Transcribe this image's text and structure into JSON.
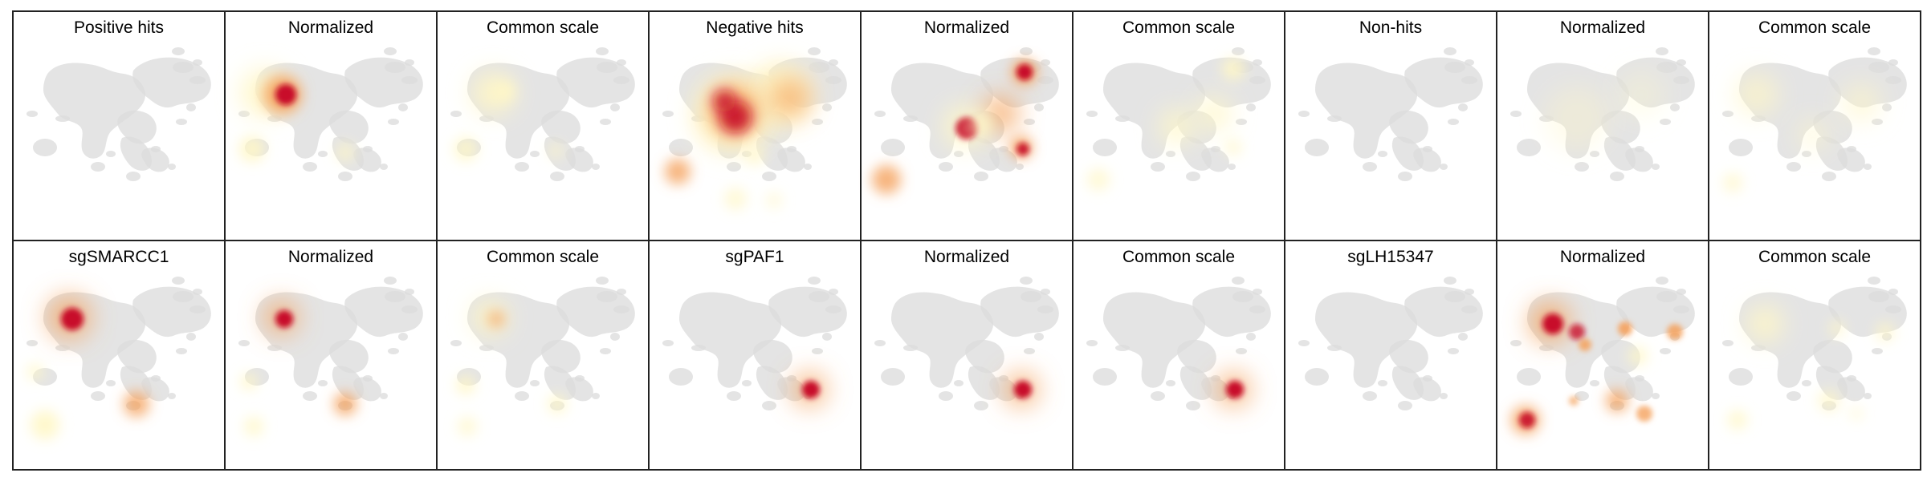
{
  "panels": [
    {
      "title": "Positive hits",
      "map": "blank"
    },
    {
      "title": "Normalized",
      "map": "positive-normalized"
    },
    {
      "title": "Common scale",
      "map": "positive-common"
    },
    {
      "title": "Negative hits",
      "map": "negative-raw"
    },
    {
      "title": "Normalized",
      "map": "negative-normalized"
    },
    {
      "title": "Common scale",
      "map": "negative-common"
    },
    {
      "title": "Non-hits",
      "map": "blank"
    },
    {
      "title": "Normalized",
      "map": "nonhit-normalized"
    },
    {
      "title": "Common scale",
      "map": "nonhit-common"
    },
    {
      "title": "sgSMARCC1",
      "map": "smarcc1-raw"
    },
    {
      "title": "Normalized",
      "map": "smarcc1-normalized"
    },
    {
      "title": "Common scale",
      "map": "smarcc1-common"
    },
    {
      "title": "sgPAF1",
      "map": "paf1-raw"
    },
    {
      "title": "Normalized",
      "map": "paf1-normalized"
    },
    {
      "title": "Common scale",
      "map": "paf1-common"
    },
    {
      "title": "sgLH15347",
      "map": "blank"
    },
    {
      "title": "Normalized",
      "map": "lh15347-normalized"
    },
    {
      "title": "Common scale",
      "map": "lh15347-common"
    }
  ],
  "colors": {
    "cells": "#dcdcdc",
    "density_low": "#fff7c6",
    "density_mid": "#f5a15c",
    "density_high": "#c8102a",
    "frame": "#222222"
  }
}
